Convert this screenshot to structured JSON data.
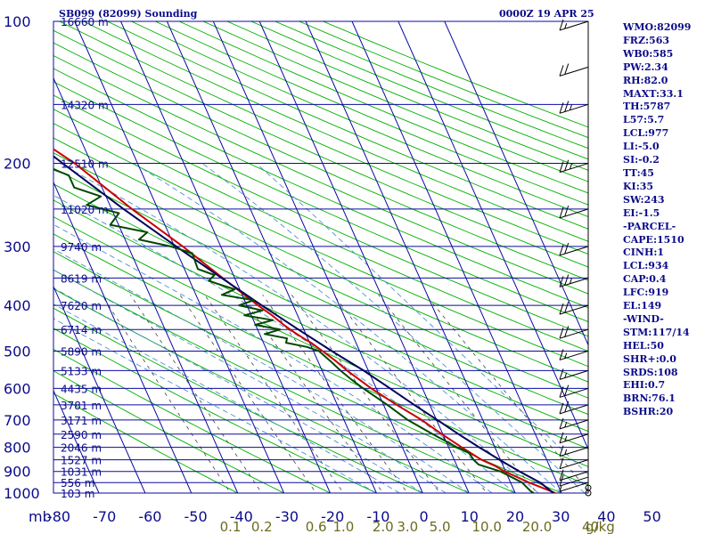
{
  "header": {
    "station_title": "SB099 (82099) Sounding",
    "datetime": "0000Z 19 APR 25"
  },
  "chart_data": {
    "type": "line",
    "title": "SB099 (82099) Sounding",
    "pressure_axis": {
      "unit_label": "mb",
      "ticks": [
        100,
        200,
        300,
        400,
        500,
        600,
        700,
        800,
        900,
        1000
      ],
      "range": [
        100,
        1000
      ],
      "scale": "log"
    },
    "temperature_axis": {
      "ticks": [
        "-80",
        "-70",
        "-60",
        "-50",
        "-40",
        "-30",
        "-20",
        "-10",
        "0",
        "10",
        "20",
        "30",
        "40",
        "50"
      ],
      "range": [
        -80,
        50
      ]
    },
    "mixing_ratio_axis": {
      "unit_label": "g/kg",
      "ticks": [
        "0.1",
        "0.2",
        "0.6",
        "1.0",
        "2.0",
        "3.0",
        "5.0",
        "10.0",
        "20.0",
        "40"
      ]
    },
    "height_labels": [
      {
        "p": 100,
        "label": "16660 m"
      },
      {
        "p": 150,
        "label": "14320 m"
      },
      {
        "p": 200,
        "label": "12510 m"
      },
      {
        "p": 250,
        "label": "11020 m"
      },
      {
        "p": 300,
        "label": "9740 m"
      },
      {
        "p": 350,
        "label": "8619 m"
      },
      {
        "p": 400,
        "label": "7620 m"
      },
      {
        "p": 450,
        "label": "6714 m"
      },
      {
        "p": 500,
        "label": "5890 m"
      },
      {
        "p": 550,
        "label": "5133 m"
      },
      {
        "p": 600,
        "label": "4435 m"
      },
      {
        "p": 650,
        "label": "3781 m"
      },
      {
        "p": 700,
        "label": "3171 m"
      },
      {
        "p": 750,
        "label": "2590 m"
      },
      {
        "p": 800,
        "label": "2046 m"
      },
      {
        "p": 850,
        "label": "1527 m"
      },
      {
        "p": 900,
        "label": "1031 m"
      },
      {
        "p": 950,
        "label": "556 m"
      },
      {
        "p": 1000,
        "label": "103 m"
      }
    ],
    "series": [
      {
        "color": "#cc0000",
        "points": [
          [
            1003,
            28.8
          ],
          [
            990,
            27.8
          ],
          [
            950,
            24
          ],
          [
            925,
            22
          ],
          [
            900,
            19.8
          ],
          [
            875,
            18.2
          ],
          [
            850,
            15.9
          ],
          [
            800,
            12.8
          ],
          [
            750,
            9.8
          ],
          [
            700,
            6.8
          ],
          [
            650,
            2.8
          ],
          [
            600,
            -1.1
          ],
          [
            575,
            -2.8
          ],
          [
            550,
            -4.6
          ],
          [
            525,
            -6.1
          ],
          [
            500,
            -8.0
          ],
          [
            480,
            -9.7
          ],
          [
            470,
            -10.9
          ],
          [
            455,
            -12.5
          ],
          [
            440,
            -13.9
          ],
          [
            420,
            -15.5
          ],
          [
            400,
            -17.6
          ],
          [
            350,
            -22.6
          ],
          [
            300,
            -28.2
          ],
          [
            250,
            -35.6
          ],
          [
            200,
            -43.6
          ],
          [
            175,
            -49.8
          ],
          [
            150,
            -56.2
          ],
          [
            125,
            -63.0
          ],
          [
            100,
            -72.0
          ]
        ]
      },
      {
        "color": "#00005a",
        "points": [
          [
            1003,
            28.4
          ],
          [
            950,
            26.4
          ],
          [
            900,
            23.0
          ],
          [
            850,
            19.8
          ],
          [
            800,
            16.6
          ],
          [
            750,
            13.4
          ],
          [
            700,
            10.2
          ],
          [
            650,
            6.6
          ],
          [
            600,
            3.0
          ],
          [
            550,
            -1.0
          ],
          [
            500,
            -6.0
          ],
          [
            450,
            -11.2
          ],
          [
            400,
            -16.8
          ],
          [
            350,
            -22.8
          ],
          [
            300,
            -29.6
          ],
          [
            250,
            -37.4
          ],
          [
            200,
            -46.2
          ],
          [
            150,
            -57.2
          ],
          [
            100,
            -75.0
          ]
        ]
      },
      {
        "color": "#004800",
        "points": [
          [
            1000,
            24.0
          ],
          [
            990,
            23.5
          ],
          [
            950,
            22.5
          ],
          [
            900,
            18.9
          ],
          [
            870,
            14.8
          ],
          [
            850,
            14.2
          ],
          [
            820,
            13.8
          ],
          [
            800,
            11.8
          ],
          [
            750,
            7.8
          ],
          [
            700,
            3.8
          ],
          [
            650,
            0.8
          ],
          [
            600,
            -2.8
          ],
          [
            575,
            -4.5
          ],
          [
            550,
            -6.0
          ],
          [
            525,
            -7.3
          ],
          [
            500,
            -8.8
          ],
          [
            490,
            -11.0
          ],
          [
            480,
            -15.1
          ],
          [
            470,
            -14.5
          ],
          [
            460,
            -18.9
          ],
          [
            450,
            -15.1
          ],
          [
            440,
            -20.1
          ],
          [
            430,
            -15.8
          ],
          [
            420,
            -21.5
          ],
          [
            410,
            -17.1
          ],
          [
            400,
            -21.7
          ],
          [
            390,
            -18.0
          ],
          [
            380,
            -24.4
          ],
          [
            370,
            -21.1
          ],
          [
            355,
            -25.9
          ],
          [
            345,
            -24.1
          ],
          [
            335,
            -27.1
          ],
          [
            325,
            -27.0
          ],
          [
            310,
            -26.8
          ],
          [
            300,
            -30.8
          ],
          [
            290,
            -37.0
          ],
          [
            280,
            -34.5
          ],
          [
            270,
            -41.8
          ],
          [
            255,
            -38.8
          ],
          [
            245,
            -45.0
          ],
          [
            235,
            -41.1
          ],
          [
            225,
            -46.0
          ],
          [
            212,
            -46.0
          ],
          [
            200,
            -51.5
          ],
          [
            175,
            -55.0
          ],
          [
            150,
            -60.0
          ],
          [
            125,
            -68.0
          ],
          [
            100,
            -78.0
          ]
        ]
      }
    ],
    "wind_barbs": [
      {
        "p": 1000,
        "kt": 0
      },
      {
        "p": 975,
        "kt": 0
      },
      {
        "p": 950,
        "kt": 5
      },
      {
        "p": 925,
        "kt": 10
      },
      {
        "p": 900,
        "kt": 10
      },
      {
        "p": 850,
        "kt": 10
      },
      {
        "p": 800,
        "kt": 15
      },
      {
        "p": 750,
        "kt": 15
      },
      {
        "p": 700,
        "kt": 15
      },
      {
        "p": 650,
        "kt": 20
      },
      {
        "p": 600,
        "kt": 20
      },
      {
        "p": 550,
        "kt": 15
      },
      {
        "p": 500,
        "kt": 15
      },
      {
        "p": 450,
        "kt": 20
      },
      {
        "p": 400,
        "kt": 20
      },
      {
        "p": 350,
        "kt": 25
      },
      {
        "p": 300,
        "kt": 20
      },
      {
        "p": 250,
        "kt": 20
      },
      {
        "p": 200,
        "kt": 25
      },
      {
        "p": 150,
        "kt": 25
      },
      {
        "p": 125,
        "kt": 20
      },
      {
        "p": 100,
        "kt": 15
      }
    ]
  },
  "indices": [
    "WMO:82099",
    "FRZ:563",
    "WB0:585",
    "PW:2.34",
    "RH:82.0",
    "MAXT:33.1",
    "TH:5787",
    "L57:5.7",
    "LCL:977",
    "LI:-5.0",
    "SI:-0.2",
    "TT:45",
    "KI:35",
    "SW:243",
    "EI:-1.5",
    "-PARCEL-",
    "CAPE:1510",
    "CINH:1",
    "LCL:934",
    "CAP:0.4",
    "LFC:919",
    "EL:149",
    "-WIND-",
    "STM:117/14",
    "HEL:50",
    "SHR+:0.0",
    "SRDS:108",
    "EHI:0.7",
    "BRN:76.1",
    "BSHR:20"
  ],
  "colors": {
    "isobar": "#0a0aa0",
    "isotherm": "#0a0aa0",
    "dry_adiabat": "#00b000",
    "moist_adiabat": "#5090d0",
    "mixing_ratio": "#404040",
    "label_blue": "#0b0b8a",
    "mixing_label": "#6b6b20"
  }
}
